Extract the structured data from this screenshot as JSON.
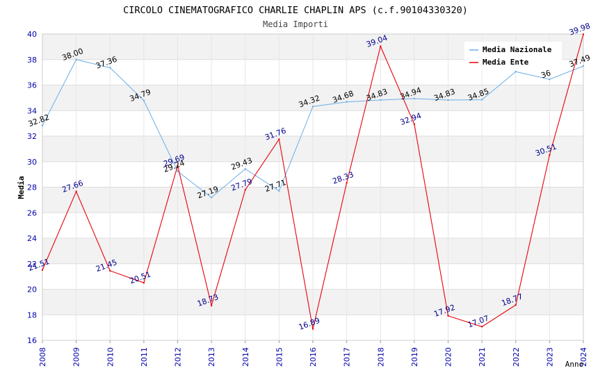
{
  "chart_data": {
    "type": "line",
    "title": "CIRCOLO CINEMATOGRAFICO CHARLIE CHAPLIN APS (c.f.90104330320)",
    "subtitle": "Media Importi",
    "xlabel": "Anno",
    "ylabel": "Media",
    "ylim": [
      16,
      40
    ],
    "y_ticks": [
      "16",
      "18",
      "20",
      "22",
      "24",
      "26",
      "28",
      "30",
      "32",
      "34",
      "36",
      "38",
      "40"
    ],
    "x": [
      "2008",
      "2009",
      "2010",
      "2011",
      "2012",
      "2013",
      "2014",
      "2015",
      "2016",
      "2017",
      "2018",
      "2019",
      "2020",
      "2021",
      "2022",
      "2023",
      "2024"
    ],
    "legend_position": "top-right",
    "series": [
      {
        "name": "Media Nazionale",
        "color": "#6aaee8",
        "label_color": "#000000",
        "values": [
          32.82,
          38.0,
          37.36,
          34.79,
          29.24,
          27.19,
          29.43,
          27.71,
          34.32,
          34.68,
          34.83,
          34.94,
          34.83,
          34.85,
          37.05,
          36.45,
          37.49
        ],
        "labels": [
          "32.82",
          "38.00",
          "37.36",
          "34.79",
          "29.24",
          "27.19",
          "29.43",
          "27.71",
          "34.32",
          "34.68",
          "34.83",
          "34.94",
          "34.83",
          "34.85",
          "",
          "36",
          "37.49"
        ]
      },
      {
        "name": "Media Ente",
        "color": "#e8000b",
        "label_color": "#00008b",
        "values": [
          21.51,
          27.66,
          21.45,
          20.51,
          29.69,
          18.73,
          27.79,
          31.76,
          16.89,
          28.33,
          39.04,
          32.94,
          17.92,
          17.07,
          18.77,
          30.51,
          39.98
        ],
        "labels": [
          "21.51",
          "27.66",
          "21.45",
          "20.51",
          "29.69",
          "18.73",
          "27.79",
          "31.76",
          "16.89",
          "28.33",
          "39.04",
          "32.94",
          "17.92",
          "17.07",
          "18.77",
          "30.51",
          "39.98"
        ]
      }
    ]
  }
}
